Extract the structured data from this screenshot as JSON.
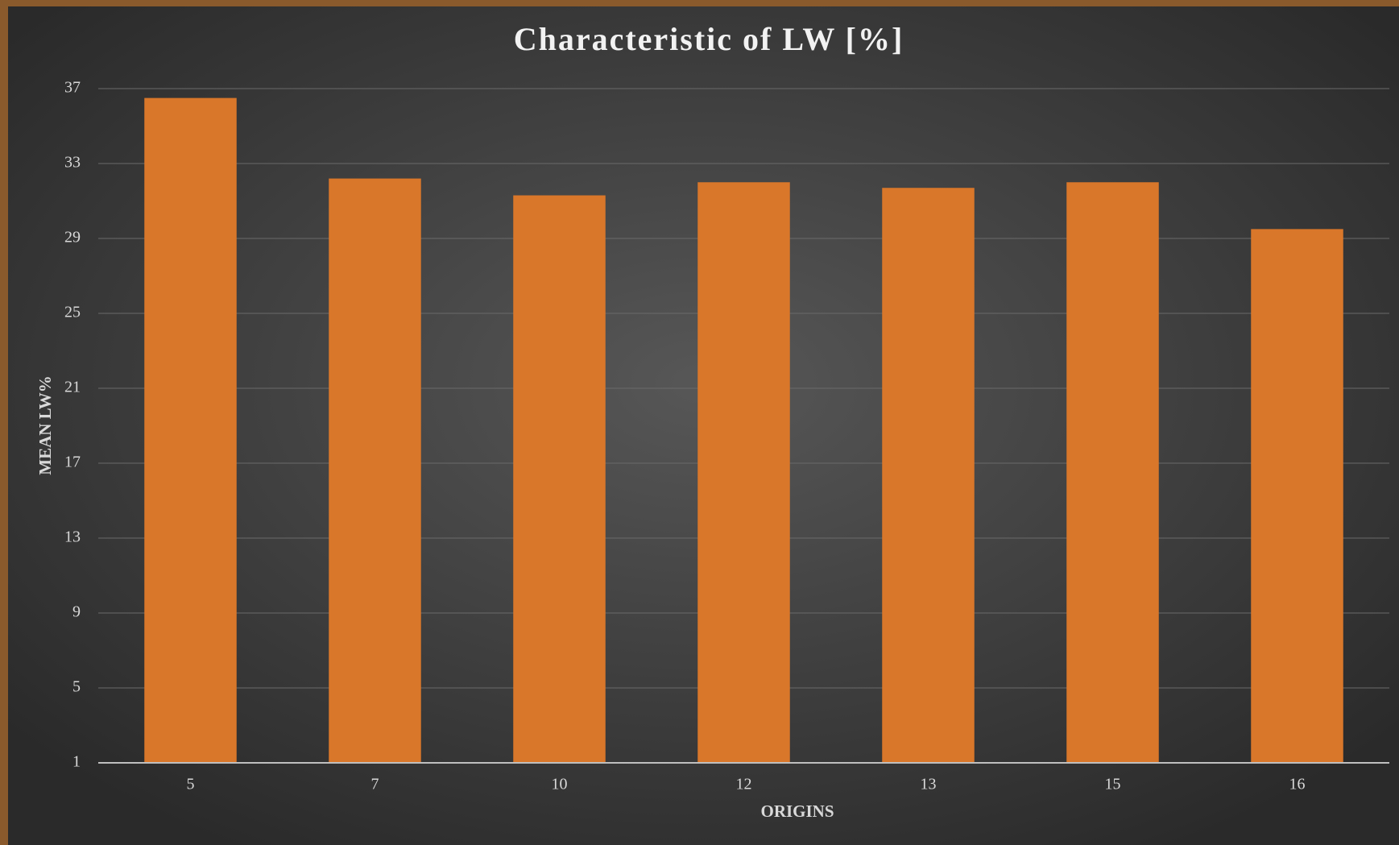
{
  "chart_data": {
    "type": "bar",
    "title": "Characteristic of LW [%]",
    "x_label": "ORIGINS",
    "y_label": "MEAN LW%",
    "categories": [
      "5",
      "7",
      "10",
      "12",
      "13",
      "15",
      "16"
    ],
    "values": [
      36.5,
      32.2,
      31.3,
      32.0,
      31.7,
      32.0,
      29.5
    ],
    "color": "#d9772a",
    "ylim": [
      1,
      37
    ],
    "yticks": [
      1,
      5,
      9,
      13,
      17,
      21,
      25,
      29,
      33,
      37
    ],
    "grid": true
  }
}
